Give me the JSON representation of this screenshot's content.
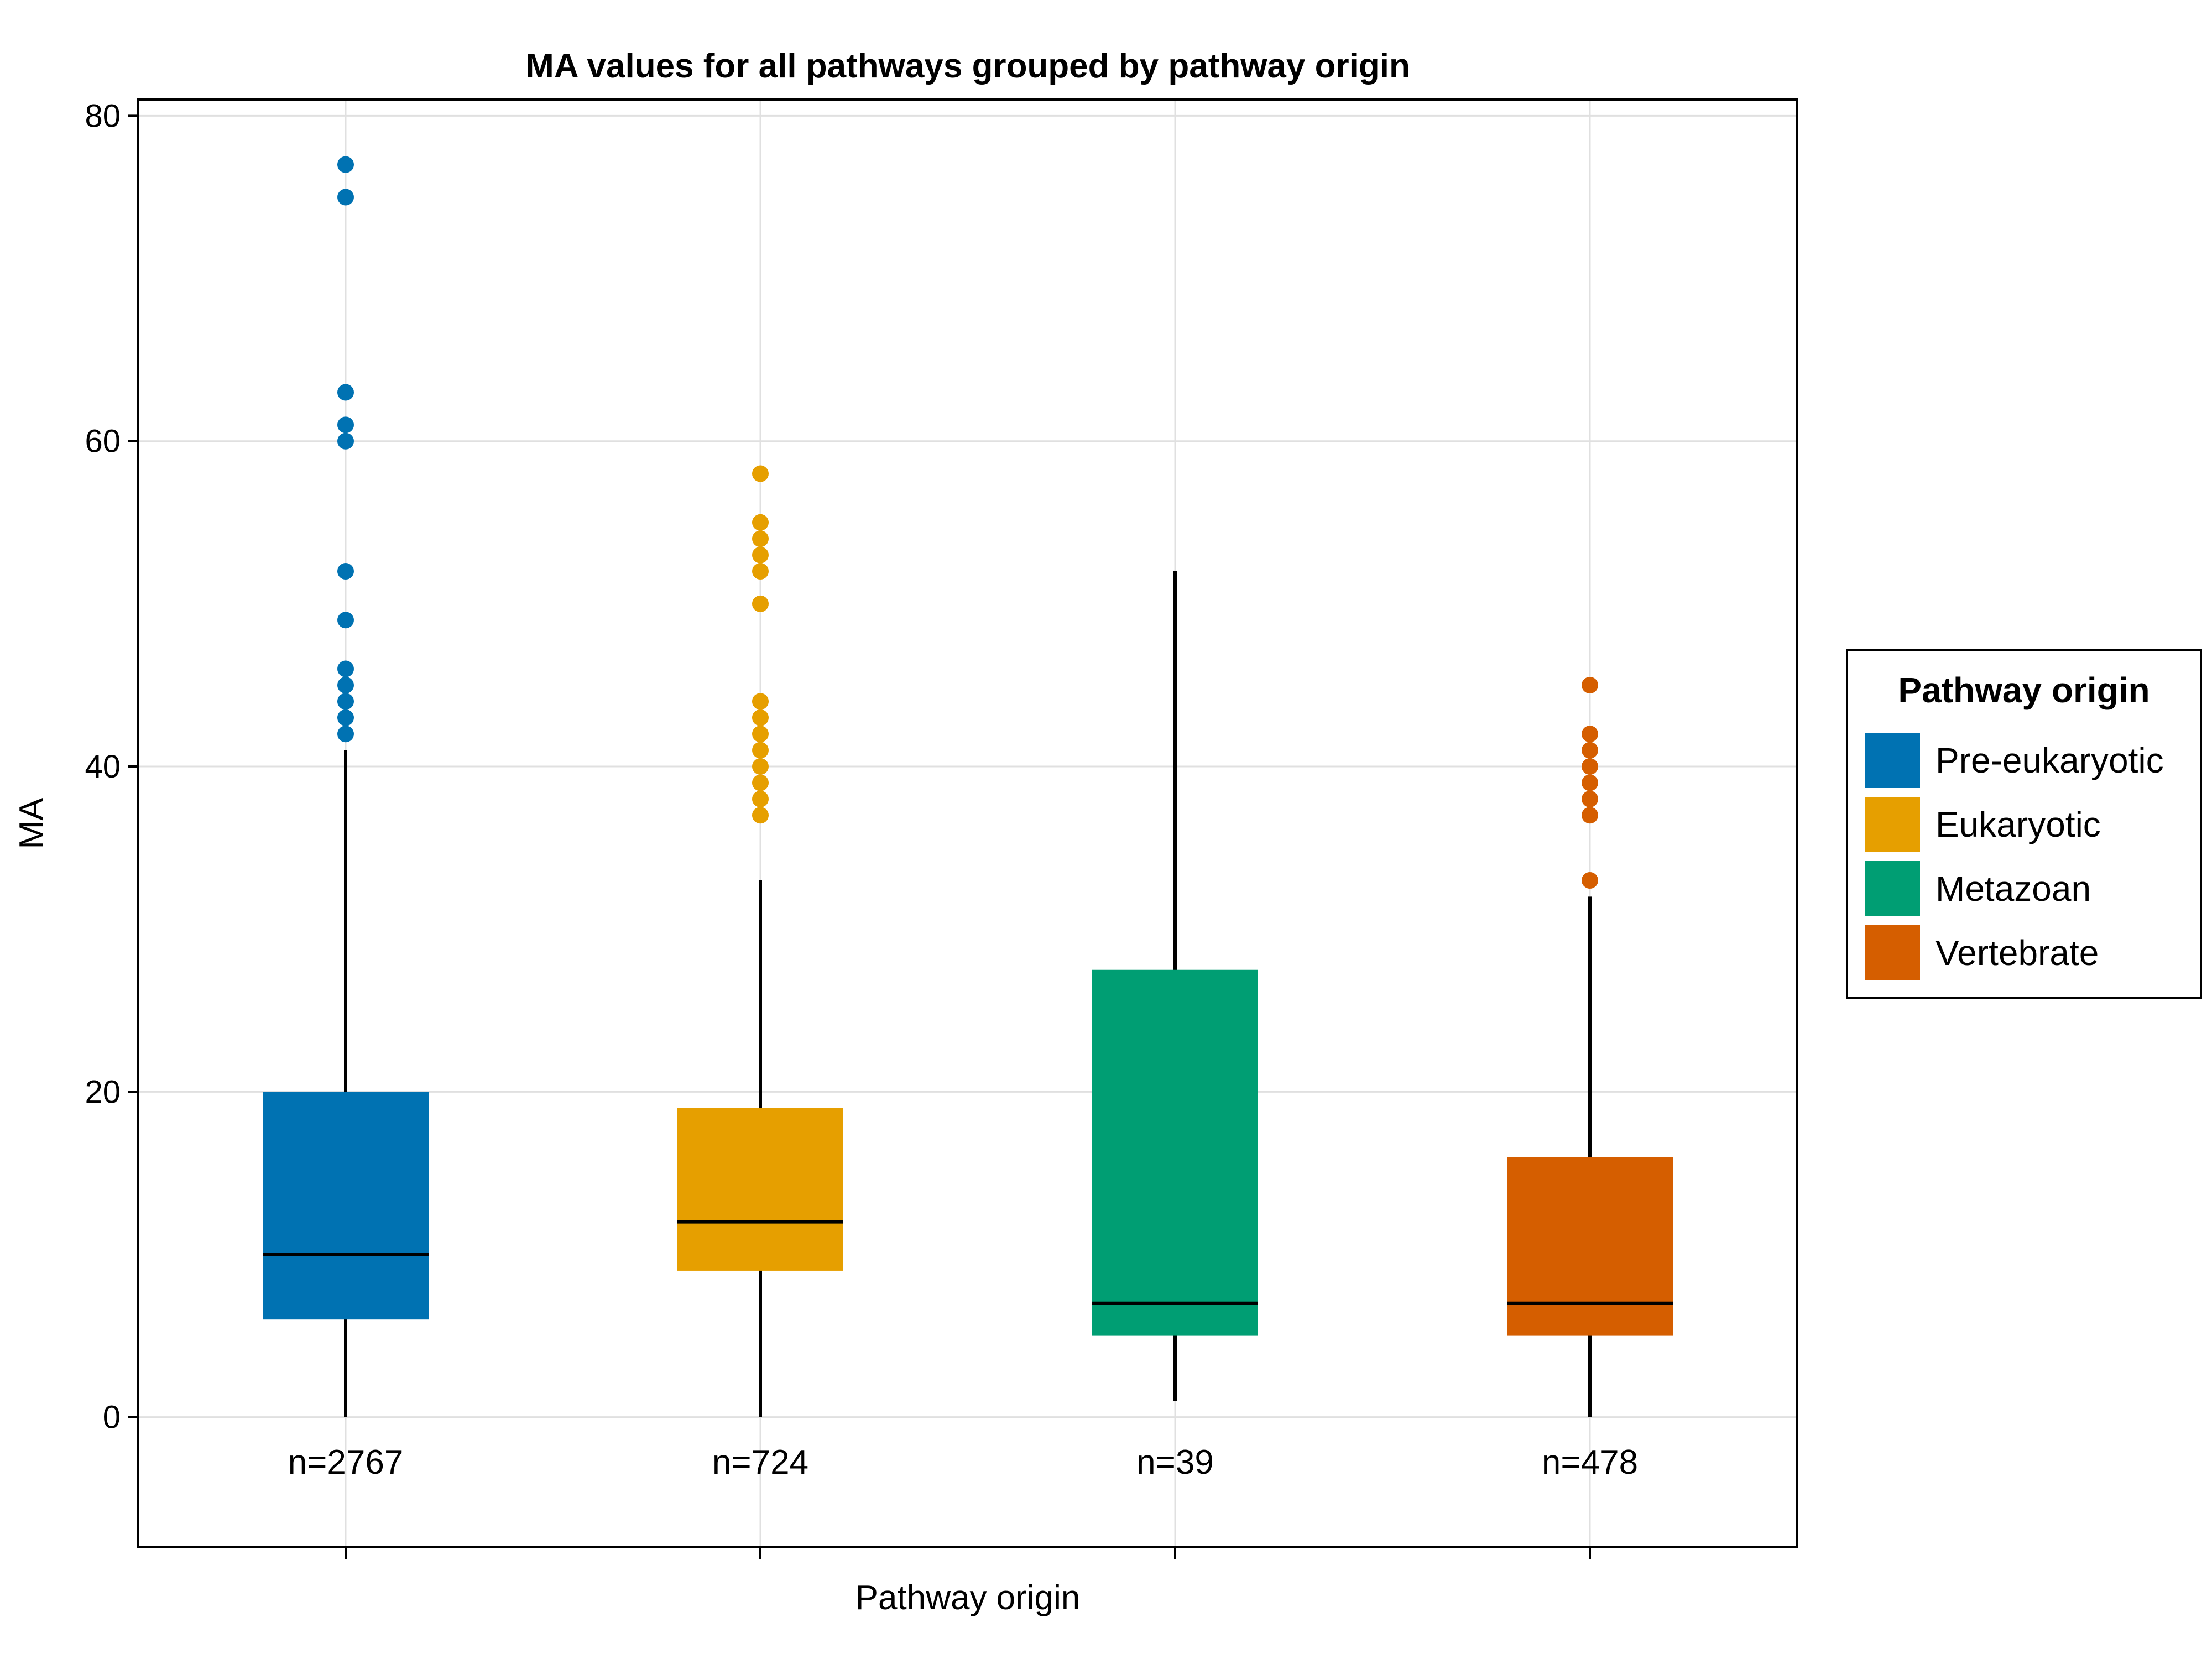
{
  "chart_data": {
    "type": "box",
    "title": "MA values for all pathways grouped by pathway origin",
    "xlabel": "Pathway origin",
    "ylabel": "MA",
    "ylim": [
      -8,
      81
    ],
    "yticks": [
      0,
      20,
      40,
      60,
      80
    ],
    "grid": true,
    "legend": {
      "title": "Pathway origin",
      "placement": "right"
    },
    "series": [
      {
        "name": "Pre-eukaryotic",
        "color": "#0072B2",
        "count_label": "n=2767",
        "q1": 6,
        "median": 10,
        "q3": 20,
        "whisker_low": 0,
        "whisker_high": 41,
        "outliers": [
          42,
          43,
          44,
          45,
          46,
          49,
          52,
          60,
          61,
          63,
          75,
          77
        ]
      },
      {
        "name": "Eukaryotic",
        "color": "#E69F00",
        "count_label": "n=724",
        "q1": 9,
        "median": 12,
        "q3": 19,
        "whisker_low": 0,
        "whisker_high": 33,
        "outliers": [
          37,
          38,
          39,
          40,
          41,
          42,
          43,
          44,
          50,
          52,
          53,
          54,
          55,
          58
        ]
      },
      {
        "name": "Metazoan",
        "color": "#009E73",
        "count_label": "n=39",
        "q1": 5,
        "median": 7,
        "q3": 27.5,
        "whisker_low": 1,
        "whisker_high": 52,
        "outliers": []
      },
      {
        "name": "Vertebrate",
        "color": "#D55E00",
        "count_label": "n=478",
        "q1": 5,
        "median": 7,
        "q3": 16,
        "whisker_low": 0,
        "whisker_high": 32,
        "outliers": [
          33,
          37,
          38,
          39,
          40,
          41,
          42,
          45
        ]
      }
    ]
  }
}
